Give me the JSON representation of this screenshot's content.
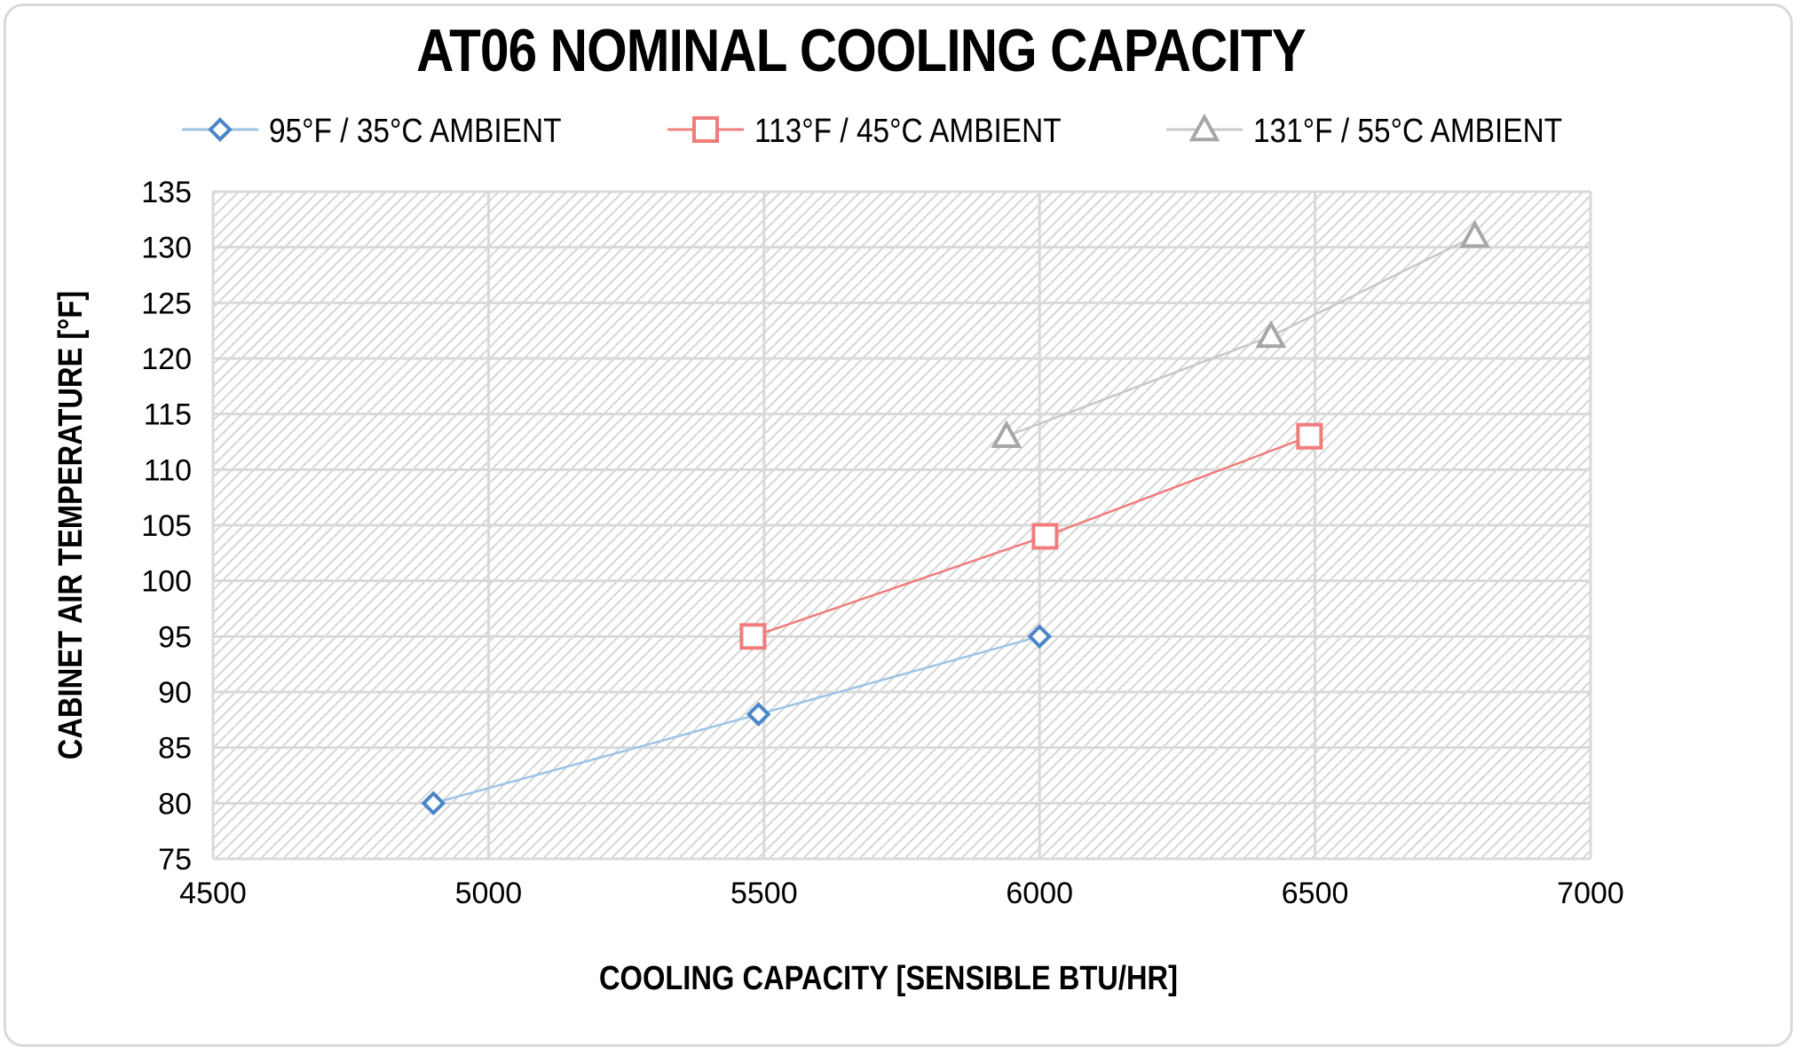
{
  "chart_data": {
    "type": "line",
    "title": "AT06 NOMINAL COOLING CAPACITY",
    "xlabel": "COOLING CAPACITY [SENSIBLE BTU/HR]",
    "ylabel": "CABINET AIR TEMPERATURE  [°F]",
    "xlim": [
      4500,
      7000
    ],
    "ylim": [
      75,
      135
    ],
    "xticks": [
      4500,
      5000,
      5500,
      6000,
      6500,
      7000
    ],
    "yticks": [
      75,
      80,
      85,
      90,
      95,
      100,
      105,
      110,
      115,
      120,
      125,
      130,
      135
    ],
    "grid": true,
    "legend_position": "top",
    "series": [
      {
        "name": "95°F / 35°C AMBIENT",
        "marker": "diamond",
        "line_color": "#9dc3e6",
        "marker_color": "#4a86c8",
        "points": [
          [
            4900,
            80
          ],
          [
            5490,
            88
          ],
          [
            6000,
            95
          ]
        ]
      },
      {
        "name": "113°F / 45°C AMBIENT",
        "marker": "square",
        "line_color": "#f07c7c",
        "marker_color": "#f07c7c",
        "points": [
          [
            5480,
            95
          ],
          [
            6010,
            104
          ],
          [
            6490,
            113
          ]
        ]
      },
      {
        "name": "131°F / 55°C AMBIENT",
        "marker": "triangle",
        "line_color": "#c8c8c8",
        "marker_color": "#a6a6a6",
        "points": [
          [
            5940,
            113
          ],
          [
            6420,
            122
          ],
          [
            6790,
            131
          ]
        ]
      }
    ]
  }
}
